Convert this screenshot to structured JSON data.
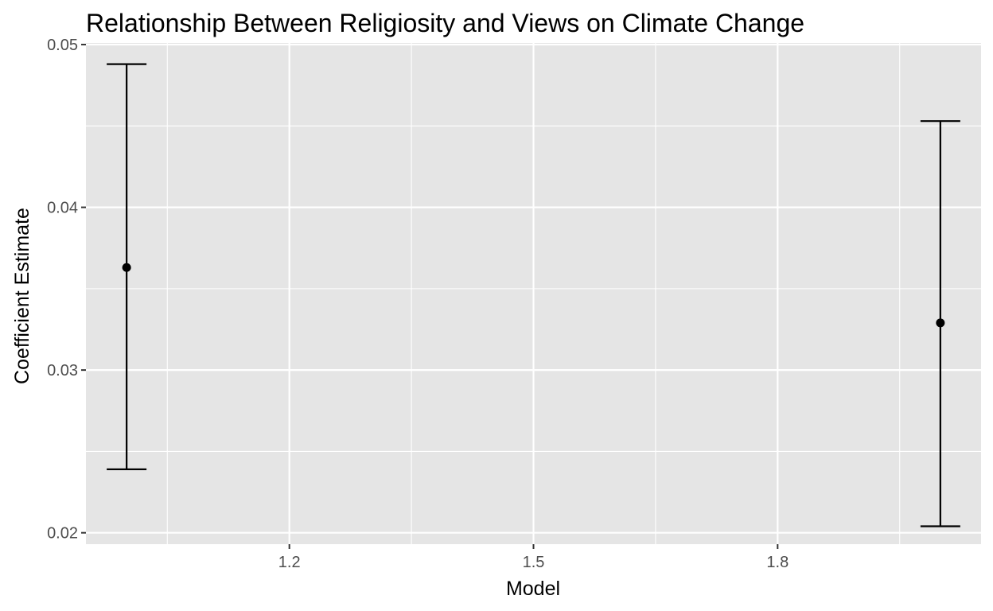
{
  "chart_data": {
    "type": "errorbar",
    "title": "Relationship Between Religiosity and Views on Climate Change",
    "xlabel": "Model",
    "ylabel": "Coefficient Estimate",
    "xlim": [
      0.95,
      2.05
    ],
    "ylim": [
      0.0193,
      0.0501
    ],
    "x_ticks": [
      {
        "value": 1.2,
        "label": "1.2"
      },
      {
        "value": 1.5,
        "label": "1.5"
      },
      {
        "value": 1.8,
        "label": "1.8"
      }
    ],
    "x_minor_ticks": [
      1.05,
      1.35,
      1.65,
      1.95
    ],
    "y_ticks": [
      {
        "value": 0.02,
        "label": "0.02"
      },
      {
        "value": 0.03,
        "label": "0.03"
      },
      {
        "value": 0.04,
        "label": "0.04"
      },
      {
        "value": 0.05,
        "label": "0.05"
      }
    ],
    "y_minor_ticks": [
      0.025,
      0.035,
      0.045
    ],
    "points": [
      {
        "x": 1,
        "estimate": 0.0363,
        "lower": 0.0239,
        "upper": 0.0488
      },
      {
        "x": 2,
        "estimate": 0.0329,
        "lower": 0.0204,
        "upper": 0.0453
      }
    ],
    "grid": true,
    "panel_background": "#e5e5e5",
    "grid_color": "#ffffff",
    "mark_color": "#000000"
  }
}
